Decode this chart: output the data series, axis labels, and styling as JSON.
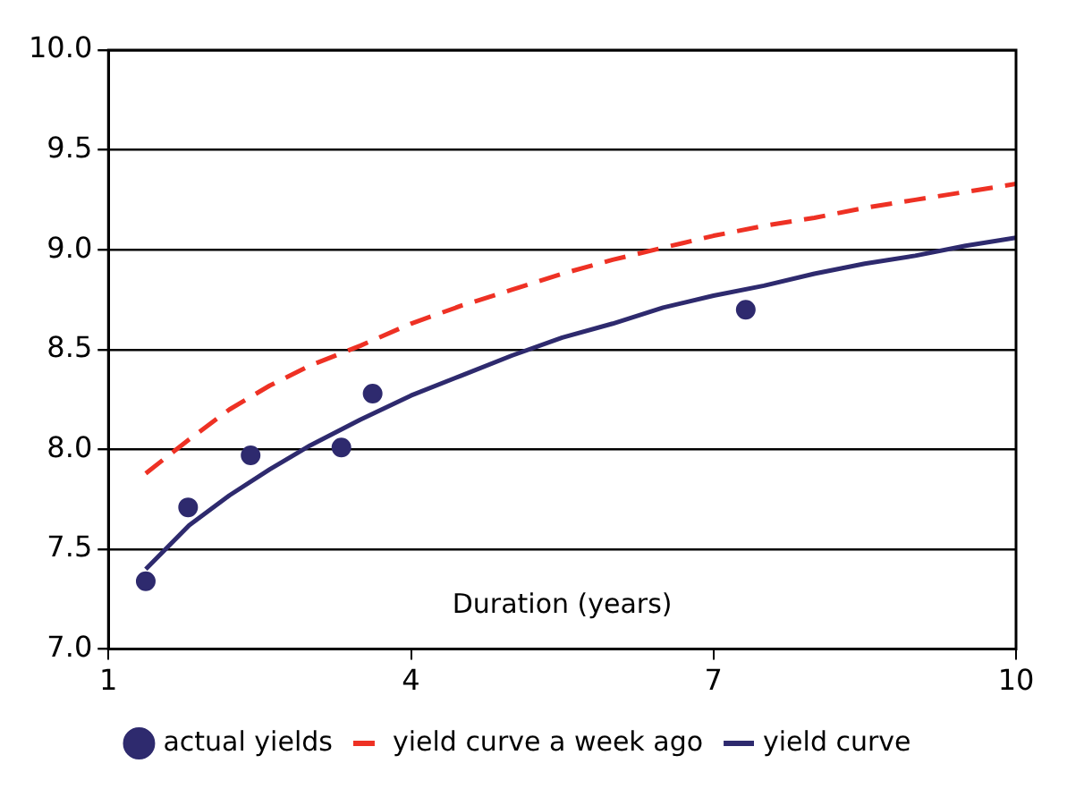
{
  "chart_data": {
    "type": "line",
    "xlabel": "Duration (years)",
    "xlim": [
      1,
      10
    ],
    "xticks": [
      1,
      4,
      7,
      10
    ],
    "ylim": [
      7,
      10
    ],
    "yticks": [
      {
        "value": 7,
        "label": "7.0"
      },
      {
        "value": 7.5,
        "label": "7.5"
      },
      {
        "value": 8,
        "label": "8.0"
      },
      {
        "value": 8.5,
        "label": "8.5"
      },
      {
        "value": 9,
        "label": "9.0"
      },
      {
        "value": 9.5,
        "label": "9.5"
      },
      {
        "value": 10,
        "label": "10.0"
      }
    ],
    "grid": "y",
    "legend": "bottom",
    "series": [
      {
        "name": "actual yields",
        "type": "scatter",
        "marker": "circle",
        "color": "#2e2a6e",
        "x": [
          1.37,
          1.79,
          2.41,
          3.31,
          3.62,
          7.32
        ],
        "values": [
          7.34,
          7.71,
          7.97,
          8.01,
          8.28,
          8.7
        ]
      },
      {
        "name": "yield curve a week ago",
        "type": "line",
        "marker": "none",
        "line_style": "dashed",
        "color": "#ee3124",
        "x": [
          1.37,
          1.8,
          2.2,
          2.6,
          3,
          3.5,
          4,
          4.5,
          5,
          5.5,
          6,
          6.5,
          7,
          7.5,
          8,
          8.5,
          9,
          9.5,
          10
        ],
        "values": [
          7.88,
          8.05,
          8.2,
          8.32,
          8.42,
          8.52,
          8.63,
          8.72,
          8.8,
          8.88,
          8.95,
          9.01,
          9.07,
          9.12,
          9.16,
          9.21,
          9.25,
          9.29,
          9.33
        ]
      },
      {
        "name": "yield curve",
        "type": "line",
        "marker": "none",
        "line_style": "solid",
        "color": "#2e2a6e",
        "x": [
          1.37,
          1.8,
          2.2,
          2.6,
          3,
          3.5,
          4,
          4.5,
          5,
          5.5,
          6,
          6.5,
          7,
          7.5,
          8,
          8.5,
          9,
          9.5,
          10
        ],
        "values": [
          7.4,
          7.62,
          7.77,
          7.9,
          8.02,
          8.15,
          8.27,
          8.37,
          8.47,
          8.56,
          8.63,
          8.71,
          8.77,
          8.82,
          8.88,
          8.93,
          8.97,
          9.02,
          9.06
        ]
      }
    ]
  }
}
